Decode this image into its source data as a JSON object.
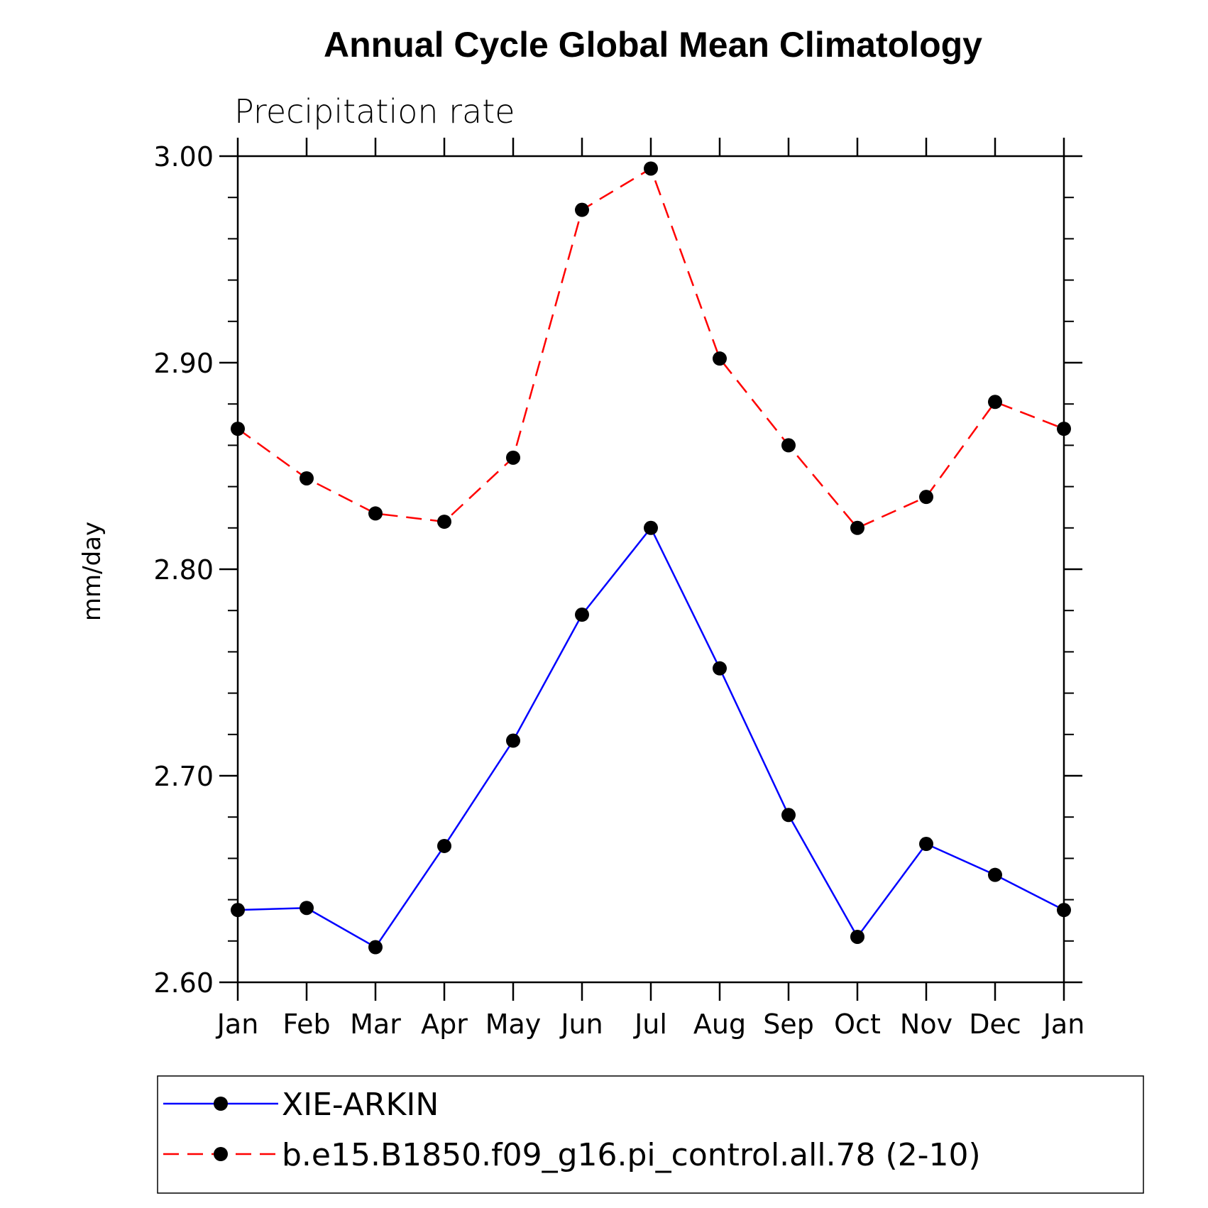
{
  "chart_data": {
    "type": "line",
    "title": "Annual Cycle Global Mean Climatology",
    "subtitle": "Precipitation rate",
    "ylabel": "mm/day",
    "xlabel": "",
    "categories": [
      "Jan",
      "Feb",
      "Mar",
      "Apr",
      "May",
      "Jun",
      "Jul",
      "Aug",
      "Sep",
      "Oct",
      "Nov",
      "Dec",
      "Jan"
    ],
    "ylim": [
      2.6,
      3.0
    ],
    "yticks": [
      "2.60",
      "2.70",
      "2.80",
      "2.90",
      "3.00"
    ],
    "series": [
      {
        "name": "XIE-ARKIN",
        "color": "#0000ff",
        "style": "solid",
        "values": [
          2.635,
          2.636,
          2.617,
          2.666,
          2.717,
          2.778,
          2.82,
          2.752,
          2.681,
          2.622,
          2.667,
          2.652,
          2.635
        ]
      },
      {
        "name": "b.e15.B1850.f09_g16.pi_control.all.78 (2-10)",
        "color": "#ff0000",
        "style": "dashed",
        "values": [
          2.868,
          2.844,
          2.827,
          2.823,
          2.854,
          2.974,
          2.994,
          2.902,
          2.86,
          2.82,
          2.835,
          2.881,
          2.868
        ]
      }
    ],
    "legend_position": "bottom",
    "marker_color": "#000000"
  }
}
